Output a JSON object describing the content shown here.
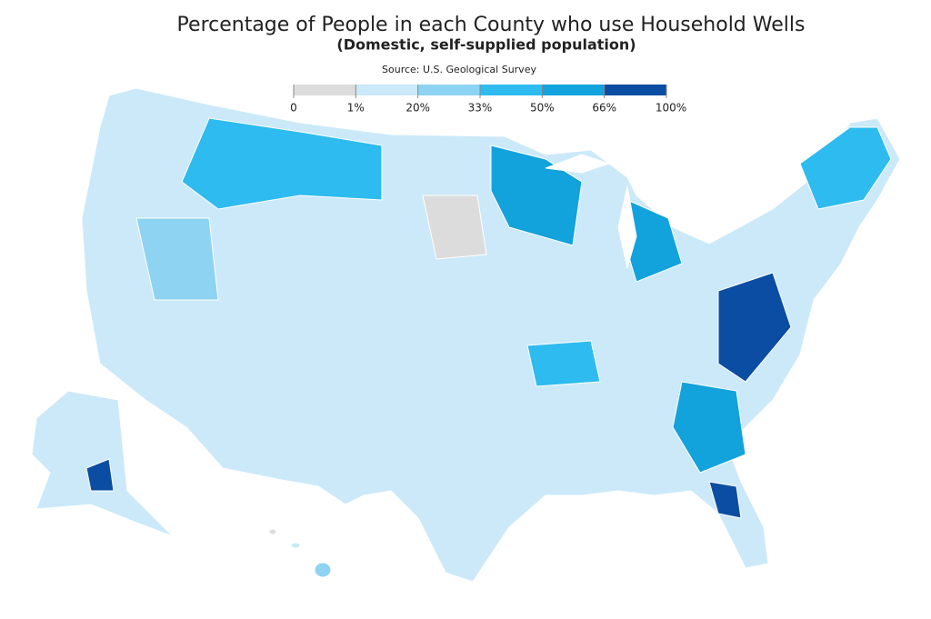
{
  "header": {
    "title": "Percentage of People in each County who use Household Wells",
    "subtitle": "(Domestic, self-supplied population)",
    "source": "Source: U.S. Geological Survey"
  },
  "legend": {
    "ticks": [
      0,
      {
        "value": 1,
        "label": "1%"
      },
      {
        "value": 20,
        "label": "20%"
      },
      {
        "value": 33,
        "label": "33%"
      },
      {
        "value": 50,
        "label": "50%"
      },
      {
        "value": 66,
        "label": "66%"
      },
      {
        "value": 100,
        "label": "100%"
      }
    ],
    "colors": [
      "#dcdcdc",
      "#cbe9f9",
      "#8ed3f2",
      "#2ebbef",
      "#12a2dc",
      "#0b4da2"
    ]
  }
}
